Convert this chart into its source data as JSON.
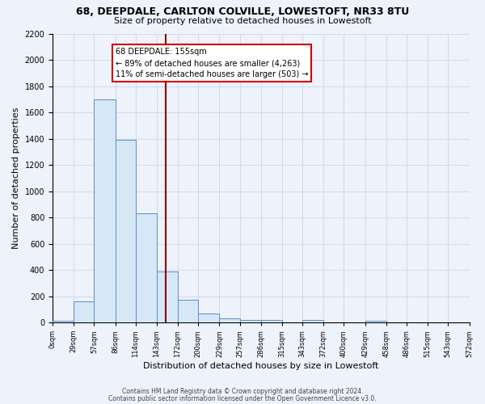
{
  "title1": "68, DEEPDALE, CARLTON COLVILLE, LOWESTOFT, NR33 8TU",
  "title2": "Size of property relative to detached houses in Lowestoft",
  "xlabel": "Distribution of detached houses by size in Lowestoft",
  "ylabel": "Number of detached properties",
  "bin_edges": [
    0,
    29,
    57,
    86,
    114,
    143,
    172,
    200,
    229,
    257,
    286,
    315,
    343,
    372,
    400,
    429,
    458,
    486,
    515,
    543,
    572
  ],
  "bar_heights": [
    15,
    160,
    1700,
    1390,
    830,
    390,
    170,
    65,
    30,
    20,
    20,
    0,
    20,
    0,
    0,
    15,
    0,
    0,
    0,
    0
  ],
  "bar_color": "#d6e8f5",
  "bar_edge_color": "#5b8cc8",
  "property_size": 155,
  "vline_color": "#8b0000",
  "annotation_line1": "68 DEEPDALE: 155sqm",
  "annotation_line2": "← 89% of detached houses are smaller (4,263)",
  "annotation_line3": "11% of semi-detached houses are larger (503) →",
  "annotation_box_color": "white",
  "annotation_box_edge": "#cc0000",
  "ylim": [
    0,
    2200
  ],
  "yticks": [
    0,
    200,
    400,
    600,
    800,
    1000,
    1200,
    1400,
    1600,
    1800,
    2000,
    2200
  ],
  "tick_labels": [
    "0sqm",
    "29sqm",
    "57sqm",
    "86sqm",
    "114sqm",
    "143sqm",
    "172sqm",
    "200sqm",
    "229sqm",
    "257sqm",
    "286sqm",
    "315sqm",
    "343sqm",
    "372sqm",
    "400sqm",
    "429sqm",
    "458sqm",
    "486sqm",
    "515sqm",
    "543sqm",
    "572sqm"
  ],
  "footer1": "Contains HM Land Registry data © Crown copyright and database right 2024.",
  "footer2": "Contains public sector information licensed under the Open Government Licence v3.0.",
  "background_color": "#eef2fb",
  "plot_bg_color": "#eef2fb",
  "grid_color": "#c8cfe0"
}
